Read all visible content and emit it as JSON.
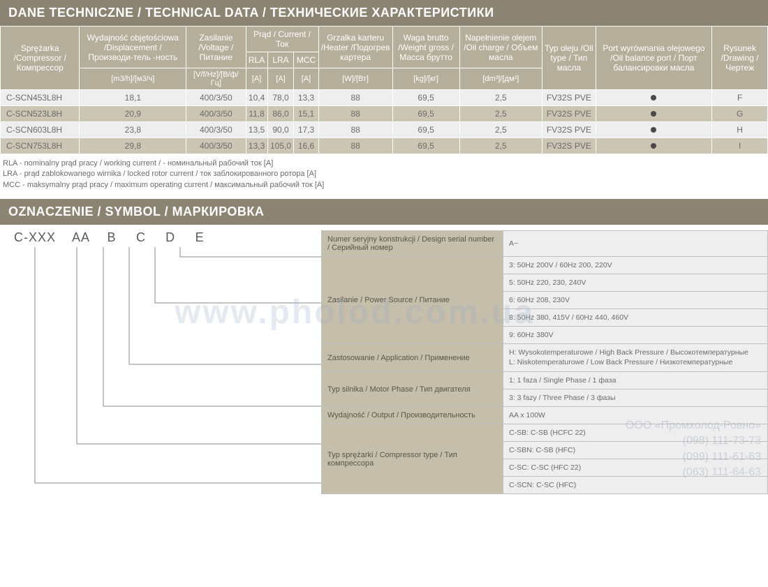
{
  "section1_title": "DANE TECHNICZNE / TECHNICAL DATA / ТЕХНИЧЕСКИЕ ХАРАКТЕРИСТИКИ",
  "tech_headers": {
    "compressor": "Sprężarka /Compressor / Компрессор",
    "displacement": "Wydajność objętościowa /Displacement /Производи-тель -ность",
    "voltage": "Zasilanie /Voltage / Питание",
    "current": "Prąd / Current / Ток",
    "rla": "RLA",
    "lra": "LRA",
    "mcc": "MCC",
    "heater": "Grzałka karteru /Heater /Подогрев картера",
    "weight": "Waga brutto /Weight gross / Масса брутто",
    "oil_charge": "Napełnienie olejem /Oil charge / Объем масла",
    "oil_type": "Typ oleju /Oil type / Тип масла",
    "port": "Port wyrównania olejowego /Oil balance port / Порт балансировки масла",
    "drawing": "Rysunek /Drawing /Чертеж"
  },
  "tech_units": {
    "displacement": "[m3/h]/[м3/ч]",
    "voltage": "[V/f/Hz]/[В/ф/Гц]",
    "rla": "[A]",
    "lra": "[A]",
    "mcc": "[A]",
    "heater": "[W]/[Вт]",
    "weight": "[kg]/[кг]",
    "oil_charge": "[dm³]/[дм³]"
  },
  "tech_rows": [
    {
      "model": "C-SCN453L8H",
      "disp": "18,1",
      "volt": "400/3/50",
      "rla": "10,4",
      "lra": "78,0",
      "mcc": "13,3",
      "heater": "88",
      "weight": "69,5",
      "oil_c": "2,5",
      "oil_t": "FV32S PVE",
      "draw": "F"
    },
    {
      "model": "C-SCN523L8H",
      "disp": "20,9",
      "volt": "400/3/50",
      "rla": "11,8",
      "lra": "86,0",
      "mcc": "15,1",
      "heater": "88",
      "weight": "69,5",
      "oil_c": "2,5",
      "oil_t": "FV32S PVE",
      "draw": "G"
    },
    {
      "model": "C-SCN603L8H",
      "disp": "23,8",
      "volt": "400/3/50",
      "rla": "13,5",
      "lra": "90,0",
      "mcc": "17,3",
      "heater": "88",
      "weight": "69,5",
      "oil_c": "2,5",
      "oil_t": "FV32S PVE",
      "draw": "H"
    },
    {
      "model": "C-SCN753L8H",
      "disp": "29,8",
      "volt": "400/3/50",
      "rla": "13,3",
      "lra": "105,0",
      "mcc": "16,6",
      "heater": "88",
      "weight": "69,5",
      "oil_c": "2,5",
      "oil_t": "FV32S PVE",
      "draw": "I"
    }
  ],
  "footnotes": {
    "rla": "RLA - nominalny prąd pracy / working current / - номинальный рабочий ток [A]",
    "lra": "LRA - prąd zablokowanego wirnika / locked rotor current / ток заблокированного ротора [A]",
    "mcc": "MCC - maksymalny prąd pracy / maximum operating current / максимальный рабочий ток [A]"
  },
  "section2_title": "OZNACZENIE / SYMBOL / МАРКИРОВКА",
  "code_parts": {
    "p1": "C-XXX",
    "p2": "AA",
    "p3": "B",
    "p4": "C",
    "p5": "D",
    "p6": "E"
  },
  "decode": {
    "serial": {
      "label": "Numer seryjny konstrukcji / Design serial number / Серийный номер",
      "val": "A~"
    },
    "power": {
      "label": "Zasilanie / Power Source / Питание",
      "v1": "3: 50Hz 200V / 60Hz 200, 220V",
      "v2": "5: 50Hz 220, 230, 240V",
      "v3": "6: 60Hz 208, 230V",
      "v4": "8: 50Hz 380, 415V / 60Hz 440, 460V",
      "v5": "9: 60Hz 380V"
    },
    "app": {
      "label": "Zastosowanie / Application / Применение",
      "val": "H: Wysokotemperaturowe / High Back Pressure / Высокотемпературные\nL: Niskotemperaturowe / Low Back Pressure / Низкотемпературные"
    },
    "motor": {
      "label": "Typ silnika / Motor Phase / Тип двигателя",
      "v1": "1: 1 faza / Single Phase / 1 фаза",
      "v2": "3: 3 fazy / Three Phase / 3 фазы"
    },
    "output": {
      "label": "Wydajność / Output / Производительность",
      "val": "AA x 100W"
    },
    "type": {
      "label": "Typ sprężarki / Compressor type / Тип компрессора",
      "v1": "C-SB: C-SB (HCFC 22)",
      "v2": "C-SBN: C-SB (HFC)",
      "v3": "C-SC: C-SC (HFC 22)",
      "v4": "C-SCN: C-SC (HFC)"
    }
  },
  "watermark": "www.pholod.com.ua",
  "contact": "ООО «Промхолод-Ровно»\n(098) 111-73-73\n(099) 111-61-63\n(063) 111-64-63"
}
